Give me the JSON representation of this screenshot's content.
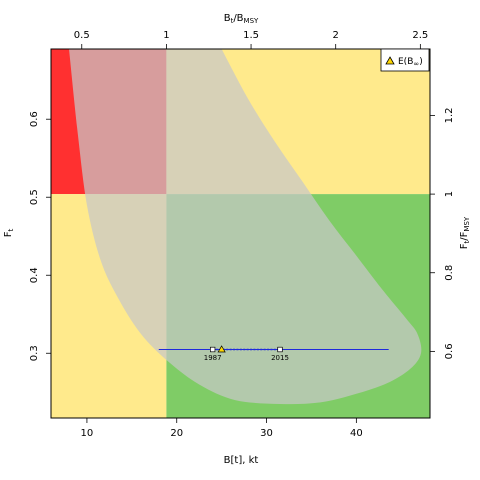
{
  "chart_data": {
    "type": "scatter",
    "xlabel": "B[t], kt",
    "ylabel": "F",
    "ylabel_sub": "t",
    "top_label": "B",
    "top_label_sub": "t",
    "top_label_rest": "/B",
    "top_label_rest_sub": "MSY",
    "right_label": "F",
    "right_label_sub": "t",
    "right_label_rest": "/F",
    "right_label_rest_sub": "MSY",
    "x_ticks": [
      "10",
      "20",
      "30",
      "40"
    ],
    "y_ticks": [
      "0.3",
      "0.4",
      "0.5",
      "0.6"
    ],
    "top_ticks": [
      "0.5",
      "1",
      "1.5",
      "2",
      "2.5"
    ],
    "right_ticks": [
      "0.6",
      "0.8",
      "1",
      "1.2"
    ],
    "xlim": [
      6,
      48.2
    ],
    "ylim": [
      0.217,
      0.69
    ],
    "bmsy": 18.85,
    "fmsy": 0.504,
    "colors": {
      "red": "#ff3030",
      "yellow": "#ffea8c",
      "green": "#7fcc66",
      "ellipse": "#c8c8c8",
      "track": "#1f2adb",
      "estimate": "#ffd700"
    },
    "series": [
      {
        "points": [
          {
            "x": 24.0,
            "y": 0.3048,
            "label": "1987"
          },
          {
            "x": 31.5,
            "y": 0.3048,
            "label": "2015"
          }
        ]
      }
    ],
    "estimate": {
      "x": 25.0,
      "y": 0.3048
    },
    "legend": {
      "position": "top-right",
      "label": "E(B",
      "label_sub": "∞",
      "label_end": ")"
    },
    "ci_line": {
      "x": [
        18.0,
        43.6
      ],
      "y": 0.3048
    }
  }
}
